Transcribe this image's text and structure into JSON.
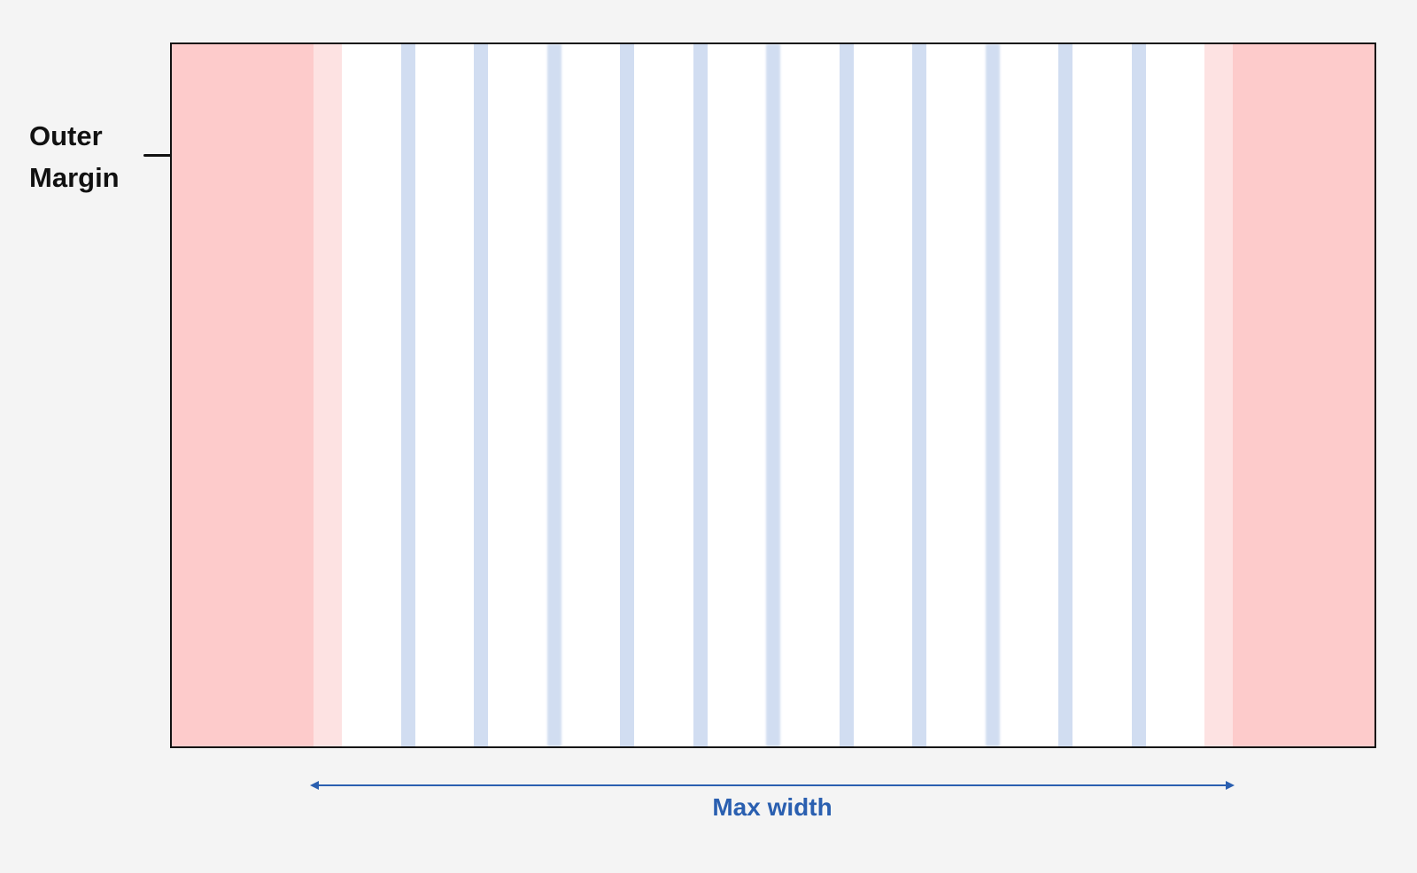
{
  "labels": {
    "outer_margin": [
      "Outer",
      "Margin"
    ],
    "max_width": "Max width"
  },
  "grid": {
    "columns": 12,
    "gutters": 11
  },
  "colors": {
    "background": "#f4f4f4",
    "outer_margin": "#fdcbcb",
    "inner_margin": "#fde2e2",
    "gutter": "#d1ddf1",
    "content": "#ffffff",
    "frame_border": "#111111",
    "label_text": "#111111",
    "dimension": "#2a5fb0"
  }
}
